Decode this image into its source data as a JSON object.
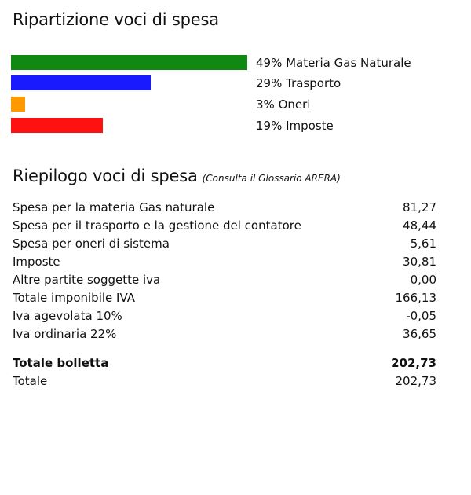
{
  "breakdown": {
    "title": "Ripartizione voci di spesa",
    "items": [
      {
        "percent": 49,
        "label": "49% Materia Gas Naturale",
        "color": "#118811"
      },
      {
        "percent": 29,
        "label": "29% Trasporto",
        "color": "#1a1aff"
      },
      {
        "percent": 3,
        "label": "3% Oneri",
        "color": "#ff9900"
      },
      {
        "percent": 19,
        "label": "19% Imposte",
        "color": "#ff1111"
      }
    ]
  },
  "summary": {
    "title": "Riepilogo voci di spesa",
    "note": "(Consulta il Glossario ARERA)",
    "rows": [
      {
        "label": "Spesa per la materia Gas naturale",
        "value": "81,27"
      },
      {
        "label": "Spesa per il trasporto e la gestione del contatore",
        "value": "48,44"
      },
      {
        "label": "Spesa per oneri di sistema",
        "value": "5,61"
      },
      {
        "label": "Imposte",
        "value": "30,81"
      },
      {
        "label": "Altre partite soggette iva",
        "value": "0,00"
      },
      {
        "label": "Totale imponibile IVA",
        "value": "166,13"
      },
      {
        "label": "Iva agevolata 10%",
        "value": "-0,05"
      },
      {
        "label": "Iva ordinaria 22%",
        "value": "36,65"
      }
    ],
    "totals": [
      {
        "label": "Totale bolletta",
        "value": "202,73"
      },
      {
        "label": "Totale",
        "value": "202,73"
      }
    ]
  }
}
